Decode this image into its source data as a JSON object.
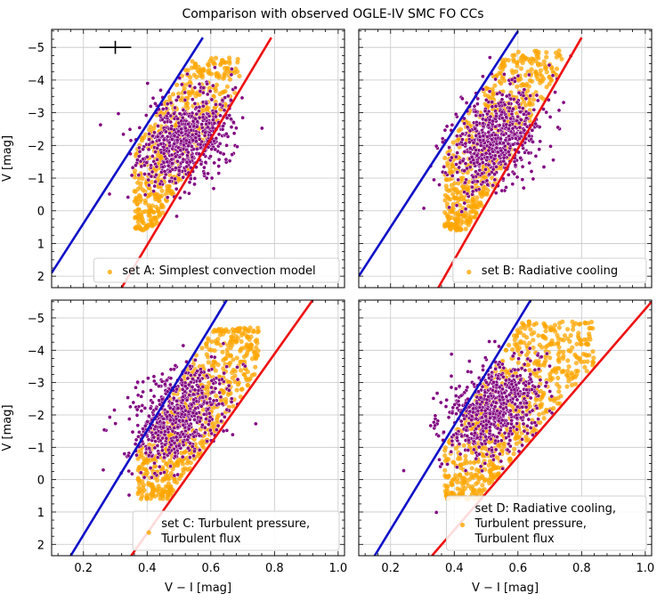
{
  "title": "Comparison with observed OGLE-IV SMC FO CCs",
  "colors": {
    "blue_edge": "#1010c8",
    "red_edge": "#ee1111",
    "observed": "#800080",
    "models": "#ffa500",
    "grid": "#c8c8c8"
  },
  "chart_data": [
    {
      "type": "scatter",
      "panel": "top-left",
      "legend_label": "set A: Simplest convection model",
      "legend_lines": [
        "set A: Simplest convection model"
      ],
      "legend_position": "bottom-right",
      "xlabel": "",
      "ylabel": "V [mag]",
      "xlim": [
        0.1,
        1.02
      ],
      "ylim": [
        2.35,
        -5.55
      ],
      "y_inverted": true,
      "xticks": [
        0.2,
        0.4,
        0.6,
        0.8,
        1.0
      ],
      "xticklabels": [],
      "yticks": [
        2,
        1,
        0,
        -1,
        -2,
        -3,
        -4,
        -5
      ],
      "yticklabels": [
        "2",
        "1",
        "0",
        "−1",
        "−2",
        "−3",
        "−4",
        "−5"
      ],
      "grid": true,
      "error_bar": {
        "x": 0.3,
        "y": -5.0,
        "xerr": 0.05,
        "yerr": 0.2
      },
      "blue_edge": [
        [
          0.1,
          1.9
        ],
        [
          0.575,
          -5.3
        ]
      ],
      "red_edge": [
        [
          0.32,
          2.35
        ],
        [
          0.79,
          -5.3
        ]
      ],
      "models_scatter": {
        "x_range": [
          0.36,
          0.69
        ],
        "v_range": [
          0.6,
          -4.7
        ]
      },
      "observed_cloud": {
        "x_center": 0.52,
        "v_center": -2.2
      }
    },
    {
      "type": "scatter",
      "panel": "top-right",
      "legend_label": "set B: Radiative cooling",
      "legend_lines": [
        "set B: Radiative cooling"
      ],
      "legend_position": "bottom-right",
      "xlabel": "",
      "ylabel": "",
      "xlim": [
        0.1,
        1.02
      ],
      "ylim": [
        2.35,
        -5.55
      ],
      "y_inverted": true,
      "xticks": [
        0.2,
        0.4,
        0.6,
        0.8,
        1.0
      ],
      "xticklabels": [],
      "yticks": [
        2,
        1,
        0,
        -1,
        -2,
        -3,
        -4,
        -5
      ],
      "yticklabels": [],
      "grid": true,
      "blue_edge": [
        [
          0.1,
          2.0
        ],
        [
          0.6,
          -5.5
        ]
      ],
      "red_edge": [
        [
          0.35,
          2.35
        ],
        [
          0.8,
          -5.3
        ]
      ],
      "models_scatter": {
        "x_range": [
          0.37,
          0.74
        ],
        "v_range": [
          0.6,
          -4.9
        ]
      },
      "observed_cloud": {
        "x_center": 0.53,
        "v_center": -2.2
      }
    },
    {
      "type": "scatter",
      "panel": "bottom-left",
      "legend_label": "set C: Turbulent pressure, Turbulent flux",
      "legend_lines": [
        "set C: Turbulent pressure,",
        "Turbulent flux"
      ],
      "legend_position": "bottom-right",
      "xlabel": "V − I [mag]",
      "ylabel": "V [mag]",
      "xlim": [
        0.1,
        1.02
      ],
      "ylim": [
        2.35,
        -5.55
      ],
      "y_inverted": true,
      "xticks": [
        0.2,
        0.4,
        0.6,
        0.8,
        1.0
      ],
      "xticklabels": [
        "0.2",
        "0.4",
        "0.6",
        "0.8",
        "1.0"
      ],
      "yticks": [
        2,
        1,
        0,
        -1,
        -2,
        -3,
        -4,
        -5
      ],
      "yticklabels": [
        "2",
        "1",
        "0",
        "−1",
        "−2",
        "−3",
        "−4",
        "−5"
      ],
      "grid": true,
      "blue_edge": [
        [
          0.16,
          2.35
        ],
        [
          0.65,
          -5.55
        ]
      ],
      "red_edge": [
        [
          0.35,
          2.35
        ],
        [
          0.92,
          -5.55
        ]
      ],
      "models_scatter": {
        "x_range": [
          0.37,
          0.75
        ],
        "v_range": [
          0.6,
          -4.7
        ]
      },
      "observed_cloud": {
        "x_center": 0.5,
        "v_center": -2.0
      }
    },
    {
      "type": "scatter",
      "panel": "bottom-right",
      "legend_label": "set D: Radiative cooling, Turbulent pressure, Turbulent flux",
      "legend_lines": [
        "set D: Radiative cooling,",
        "Turbulent pressure,",
        "Turbulent flux"
      ],
      "legend_position": "bottom-right",
      "xlabel": "V − I [mag]",
      "ylabel": "",
      "xlim": [
        0.1,
        1.02
      ],
      "ylim": [
        2.35,
        -5.55
      ],
      "y_inverted": true,
      "xticks": [
        0.2,
        0.4,
        0.6,
        0.8,
        1.0
      ],
      "xticklabels": [
        "0.2",
        "0.4",
        "0.6",
        "0.8",
        "1.0"
      ],
      "yticks": [
        2,
        1,
        0,
        -1,
        -2,
        -3,
        -4,
        -5
      ],
      "yticklabels": [],
      "grid": true,
      "blue_edge": [
        [
          0.15,
          2.35
        ],
        [
          0.64,
          -5.55
        ]
      ],
      "red_edge": [
        [
          0.33,
          2.35
        ],
        [
          1.02,
          -5.5
        ]
      ],
      "models_scatter": {
        "x_range": [
          0.37,
          0.84
        ],
        "v_range": [
          0.6,
          -4.9
        ]
      },
      "observed_cloud": {
        "x_center": 0.52,
        "v_center": -2.2
      }
    }
  ]
}
